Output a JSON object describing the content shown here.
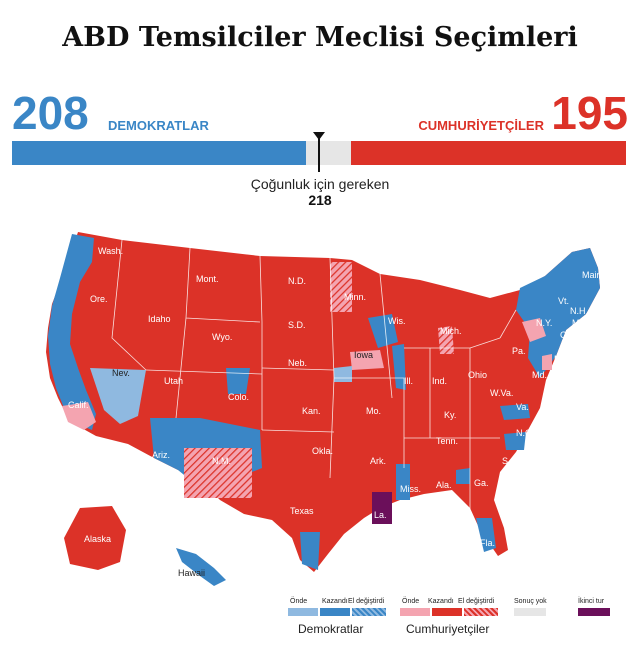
{
  "title": "ABD Temsilciler Meclisi Seçimleri",
  "dem": {
    "seats": "208",
    "label": "DEMOKRATLAR",
    "color": "#3a86c6"
  },
  "rep": {
    "seats": "195",
    "label": "CUMHURİYETÇİLER",
    "color": "#dc3228"
  },
  "total_seats": 435,
  "majority": {
    "label": "Çoğunluk için gereken",
    "value": "218"
  },
  "map": {
    "state_labels": [
      "Wash.",
      "Ore.",
      "Idaho",
      "Mont.",
      "N.D.",
      "Minn.",
      "Wis.",
      "Mich.",
      "N.Y.",
      "Vt.",
      "N.H.",
      "Maine",
      "Mass.",
      "Conn.",
      "R.I.",
      "N.J.",
      "Del.",
      "Md.",
      "Pa.",
      "Ohio",
      "Ind.",
      "Ill.",
      "Iowa",
      "Neb.",
      "S.D.",
      "Wyo.",
      "Nev.",
      "Utah",
      "Colo.",
      "Calif.",
      "Ariz.",
      "N.M.",
      "Kan.",
      "Okla.",
      "Texas",
      "Mo.",
      "Ark.",
      "La.",
      "Miss.",
      "Ala.",
      "Ga.",
      "Fla.",
      "S.C.",
      "N.C.",
      "Tenn.",
      "Ky.",
      "W.Va.",
      "Va.",
      "Alaska",
      "Hawaii"
    ]
  },
  "legend": {
    "dem_group": "Demokratlar",
    "rep_group": "Cumhuriyetçiler",
    "leading": "Önde",
    "won": "Kazandı",
    "flipped": "El değiştirdi",
    "no_result": "Sonuç yok",
    "runoff": "İkinci tur",
    "colors": {
      "dem_leading": "#8fb9e0",
      "dem_won": "#3a86c6",
      "rep_leading": "#f4a4b0",
      "rep_won": "#dc3228",
      "no_result": "#e6e6e6",
      "runoff": "#6b0f5a"
    }
  }
}
